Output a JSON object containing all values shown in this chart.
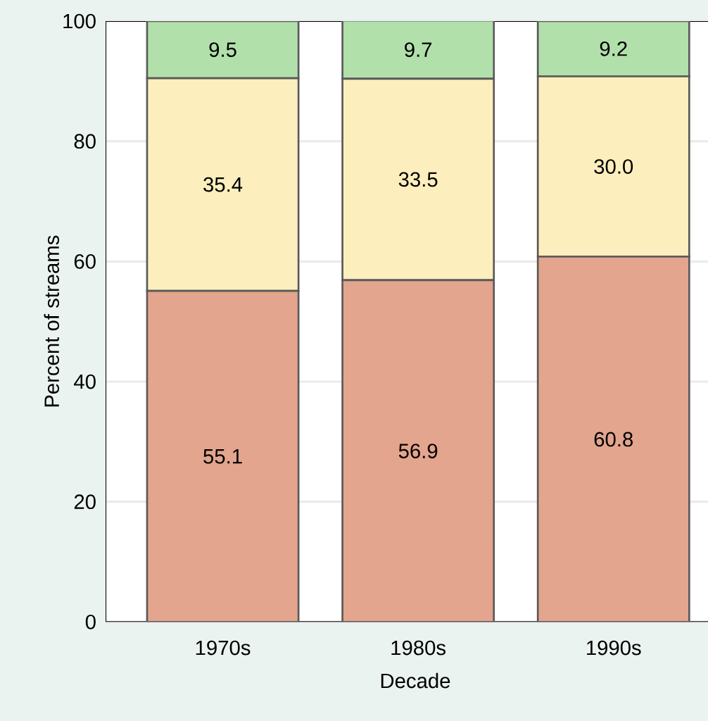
{
  "chart_data": {
    "type": "bar",
    "stacked": true,
    "xlabel": "Decade",
    "ylabel": "Percent of streams",
    "categories": [
      "1970s",
      "1980s",
      "1990s"
    ],
    "series": [
      {
        "color": "#e3a58e",
        "values": [
          55.1,
          56.9,
          60.8
        ],
        "value_labels": [
          "55.1",
          "56.9",
          "60.8"
        ]
      },
      {
        "color": "#fdefbd",
        "values": [
          35.4,
          33.5,
          30.0
        ],
        "value_labels": [
          "35.4",
          "33.5",
          "30.0"
        ]
      },
      {
        "color": "#b2e0ab",
        "values": [
          9.5,
          9.7,
          9.2
        ],
        "value_labels": [
          "9.5",
          "9.7",
          "9.2"
        ]
      }
    ],
    "ylim": [
      0,
      100
    ],
    "yticks": [
      0,
      20,
      40,
      60,
      80,
      100
    ],
    "grid": "y"
  }
}
